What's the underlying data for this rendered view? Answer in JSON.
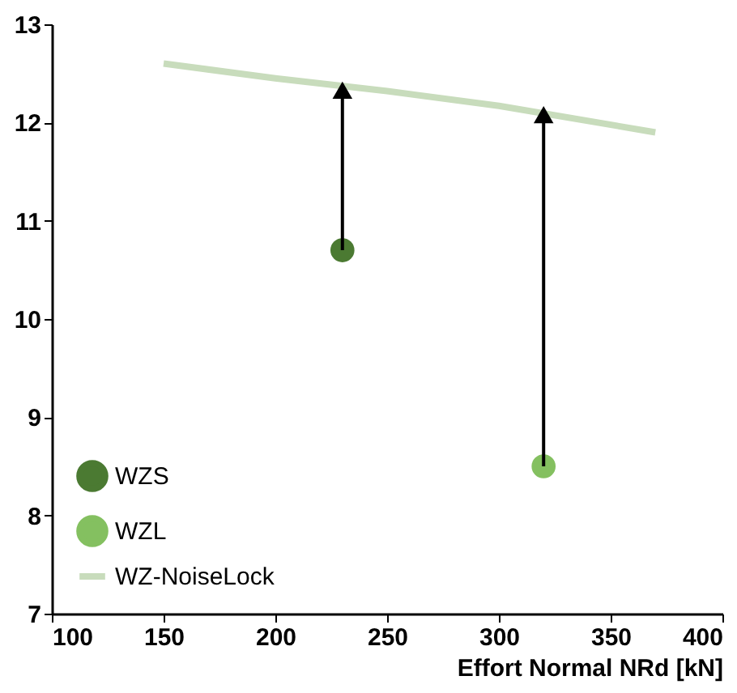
{
  "chart_data": {
    "type": "scatter",
    "xlabel": "Effort Normal NRd [kN]",
    "xlim": [
      100,
      400
    ],
    "xticks": [
      100,
      150,
      200,
      250,
      300,
      350,
      400
    ],
    "ylim": [
      7,
      13
    ],
    "yticks": [
      7,
      8,
      9,
      10,
      11,
      12,
      13
    ],
    "grid": false,
    "legend": "bottom left",
    "marker": "circle",
    "series": [
      {
        "name": "WZS",
        "color": "#4b7a32",
        "x": [
          230
        ],
        "values": [
          10.7
        ]
      },
      {
        "name": "WZL",
        "color": "#84c060",
        "x": [
          320
        ],
        "values": [
          8.5
        ]
      },
      {
        "name": "WZ-NoiseLock",
        "type": "line",
        "color": "#c8dcbc",
        "marker": "none",
        "x": [
          150,
          200,
          250,
          300,
          370
        ],
        "values": [
          12.6,
          12.45,
          12.32,
          12.17,
          11.9
        ]
      },
      {
        "type": "line",
        "color": "#000000",
        "marker": "triangle",
        "x": [
          230,
          230
        ],
        "values": [
          10.7,
          12.3
        ]
      },
      {
        "type": "line",
        "color": "#000000",
        "marker": "triangle",
        "x": [
          320,
          320
        ],
        "values": [
          8.5,
          12.05
        ]
      }
    ]
  }
}
